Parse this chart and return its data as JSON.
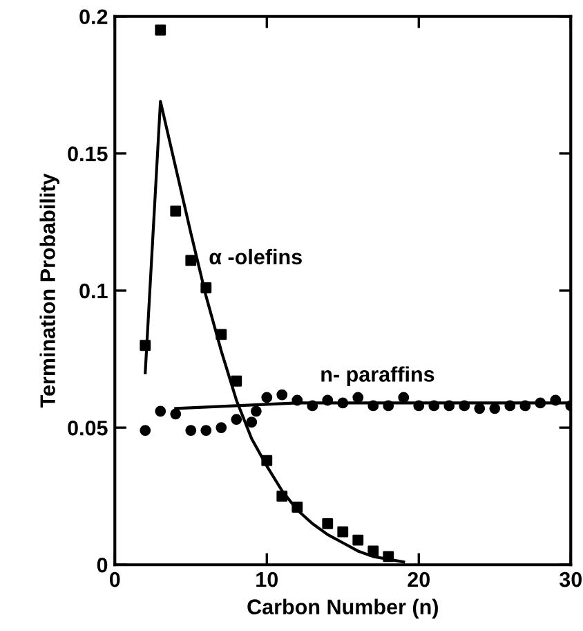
{
  "chart_data": {
    "type": "scatter",
    "xlabel": "Carbon Number (n)",
    "ylabel": "Termination Probability",
    "xlim": [
      0,
      30
    ],
    "ylim": [
      0,
      0.2
    ],
    "xticks": [
      0,
      10,
      20,
      30
    ],
    "yticks": [
      0,
      0.05,
      0.1,
      0.15,
      0.2
    ],
    "grid": false,
    "legend": false,
    "series": [
      {
        "marker": "square",
        "color": "#000000",
        "x": [
          2,
          3,
          4,
          5,
          6,
          7,
          8,
          10,
          11,
          12,
          14,
          15,
          16,
          17,
          18
        ],
        "values": [
          0.08,
          0.195,
          0.129,
          0.111,
          0.101,
          0.084,
          0.067,
          0.038,
          0.025,
          0.021,
          0.015,
          0.012,
          0.009,
          0.005,
          0.003
        ]
      },
      {
        "type": "line",
        "marker": "none",
        "color": "#000000",
        "x": [
          2,
          3,
          4,
          5,
          6,
          7,
          8,
          9,
          10,
          11,
          12,
          13,
          14,
          15,
          16,
          17,
          18,
          19
        ],
        "values": [
          0.07,
          0.169,
          0.145,
          0.121,
          0.098,
          0.078,
          0.06,
          0.046,
          0.036,
          0.027,
          0.02,
          0.015,
          0.011,
          0.008,
          0.005,
          0.003,
          0.002,
          0.001
        ]
      },
      {
        "marker": "circle",
        "color": "#000000",
        "x": [
          2,
          3,
          4,
          5,
          6,
          7,
          8,
          9,
          9.3,
          10,
          11,
          12,
          13,
          14,
          15,
          16,
          17,
          18,
          19,
          20,
          21,
          22,
          23,
          24,
          25,
          26,
          27,
          28,
          29,
          30
        ],
        "values": [
          0.049,
          0.056,
          0.055,
          0.049,
          0.049,
          0.05,
          0.053,
          0.052,
          0.056,
          0.061,
          0.062,
          0.06,
          0.058,
          0.06,
          0.059,
          0.061,
          0.058,
          0.058,
          0.061,
          0.058,
          0.058,
          0.058,
          0.058,
          0.057,
          0.057,
          0.058,
          0.058,
          0.059,
          0.06,
          0.058
        ]
      },
      {
        "type": "line",
        "marker": "none",
        "color": "#000000",
        "x": [
          4,
          8,
          12,
          30
        ],
        "values": [
          0.057,
          0.058,
          0.059,
          0.059
        ]
      }
    ],
    "annotations": [
      "α -olefins",
      "n- paraffins"
    ]
  }
}
